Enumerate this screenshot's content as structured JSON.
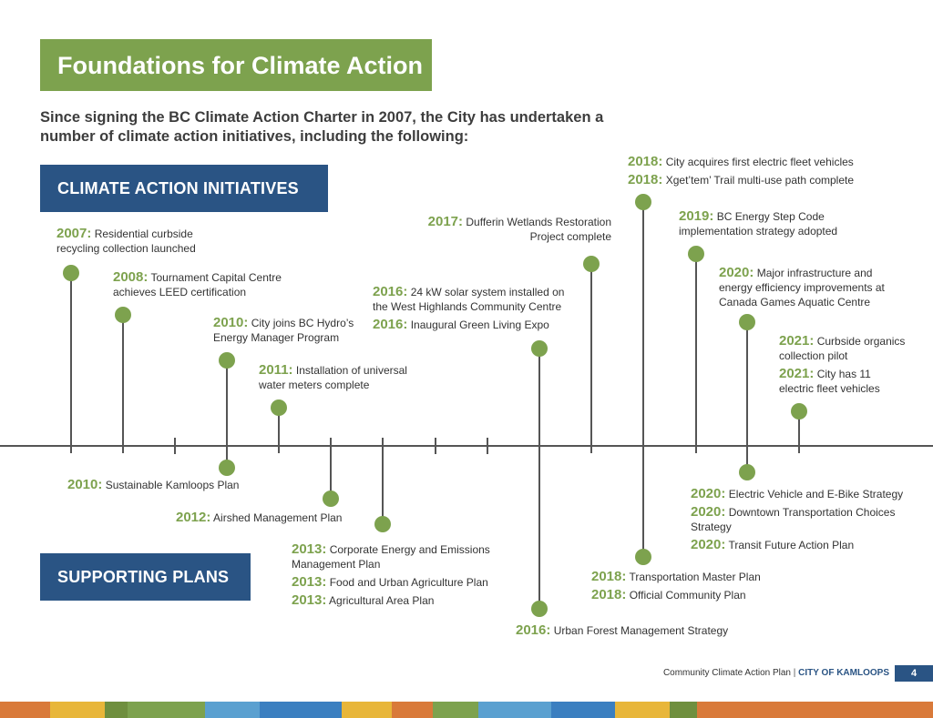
{
  "title": "Foundations for Climate Action",
  "intro": "Since signing the BC Climate Action Charter in 2007, the City has undertaken a number of climate action initiatives, including the following:",
  "sections": {
    "initiatives": "CLIMATE ACTION INITIATIVES",
    "plans": "SUPPORTING PLANS"
  },
  "initiatives": [
    {
      "entries": [
        {
          "year": "2007:",
          "text": "Residential curbside recycling collection launched"
        }
      ]
    },
    {
      "entries": [
        {
          "year": "2008:",
          "text": "Tournament Capital Centre achieves LEED certification"
        }
      ]
    },
    {
      "entries": [
        {
          "year": "2010:",
          "text": "City joins BC Hydro’s Energy Manager Program"
        }
      ]
    },
    {
      "entries": [
        {
          "year": "2011:",
          "text": "Installation of universal water meters complete"
        }
      ]
    },
    {
      "entries": [
        {
          "year": "2016:",
          "text": "24 kW solar system installed on the West Highlands Community Centre"
        },
        {
          "year": "2016:",
          "text": "Inaugural Green Living Expo"
        }
      ]
    },
    {
      "entries": [
        {
          "year": "2017:",
          "text": "Dufferin Wetlands Restoration Project complete"
        }
      ]
    },
    {
      "entries": [
        {
          "year": "2018:",
          "text": "City acquires first electric fleet vehicles"
        },
        {
          "year": "2018:",
          "text": "Xget’tem’ Trail multi-use path complete"
        }
      ]
    },
    {
      "entries": [
        {
          "year": "2019:",
          "text": "BC Energy Step Code implementation strategy adopted"
        }
      ]
    },
    {
      "entries": [
        {
          "year": "2020:",
          "text": "Major infrastructure and energy efficiency improvements at Canada Games Aquatic Centre"
        }
      ]
    },
    {
      "entries": [
        {
          "year": "2021:",
          "text": "Curbside organics collection pilot"
        },
        {
          "year": "2021:",
          "text": "City has 11 electric fleet vehicles"
        }
      ]
    }
  ],
  "plans": [
    {
      "entries": [
        {
          "year": "2010:",
          "text": "Sustainable Kamloops Plan"
        }
      ]
    },
    {
      "entries": [
        {
          "year": "2012:",
          "text": "Airshed Management Plan"
        }
      ]
    },
    {
      "entries": [
        {
          "year": "2013:",
          "text": "Corporate Energy and Emissions Management Plan"
        },
        {
          "year": "2013:",
          "text": "Food and Urban Agriculture Plan"
        },
        {
          "year": "2013:",
          "text": "Agricultural Area Plan"
        }
      ]
    },
    {
      "entries": [
        {
          "year": "2016:",
          "text": "Urban Forest Management Strategy"
        }
      ]
    },
    {
      "entries": [
        {
          "year": "2018:",
          "text": "Transportation Master Plan"
        },
        {
          "year": "2018:",
          "text": "Official Community Plan"
        }
      ]
    },
    {
      "entries": [
        {
          "year": "2020:",
          "text": "Electric Vehicle and E-Bike Strategy"
        },
        {
          "year": "2020:",
          "text": "Downtown Transportation Choices Strategy"
        },
        {
          "year": "2020:",
          "text": "Transit Future Action Plan"
        }
      ]
    }
  ],
  "footer": {
    "doc": "Community Climate Action Plan",
    "separator": "|",
    "city": "CITY OF KAMLOOPS",
    "page": "4"
  },
  "colors": {
    "green": "#7da24e",
    "navy": "#2a5484",
    "strip": [
      "#d97a3a",
      "#e8b63a",
      "#6f8f3e",
      "#7da24e",
      "#5aa0d0",
      "#3b7fc0",
      "#e8b63a",
      "#d97a3a",
      "#7da24e",
      "#5aa0d0",
      "#3b7fc0",
      "#e8b63a",
      "#6f8f3e",
      "#d97a3a"
    ]
  }
}
